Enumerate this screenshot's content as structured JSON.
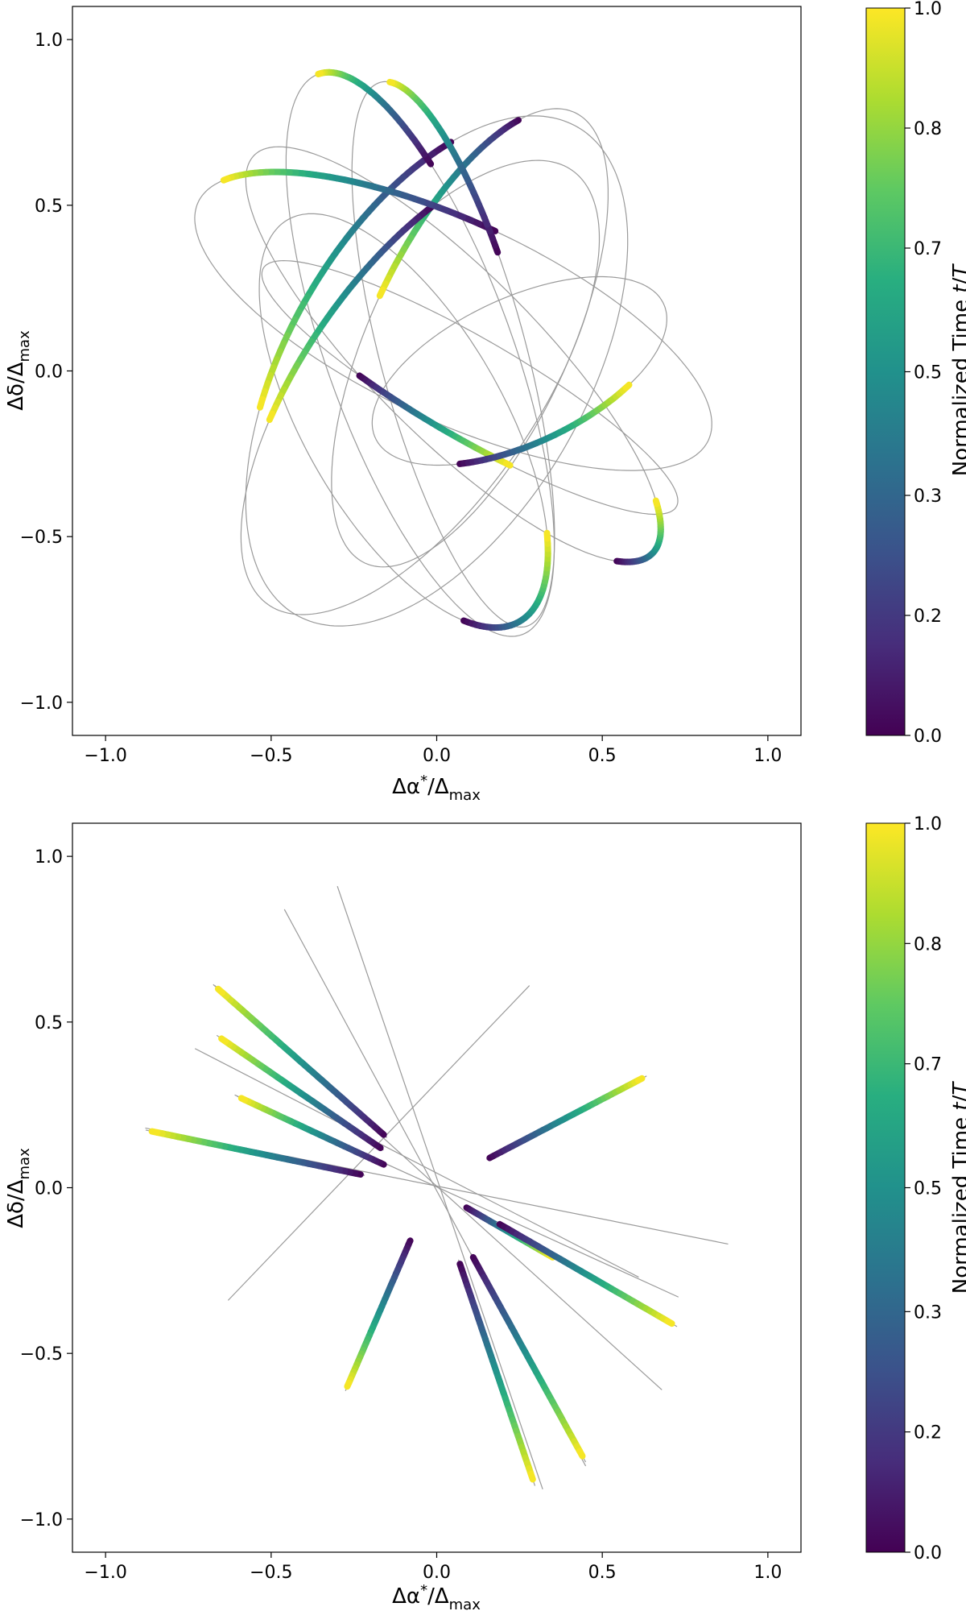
{
  "chart_data": [
    {
      "type": "line",
      "title": "",
      "xlabel": "Δα*/Δmax",
      "ylabel": "Δδ/Δmax",
      "xlim": [
        -1.1,
        1.1
      ],
      "ylim": [
        -1.1,
        1.1
      ],
      "xticks": [
        "−1.0",
        "−0.5",
        "0.0",
        "0.5",
        "1.0"
      ],
      "yticks": [
        "−1.0",
        "−0.5",
        "0.0",
        "0.5",
        "1.0"
      ],
      "grid": false,
      "colorbar": {
        "label": "Normalized Time t/T",
        "range": [
          0,
          1
        ],
        "ticks": [
          "0.0",
          "0.2",
          "0.3",
          "0.5",
          "0.7",
          "0.8",
          "1.0"
        ],
        "colormap": "viridis"
      },
      "series": [
        {
          "orbit": [
            0,
            0,
            0.85,
            0.45,
            -120
          ],
          "t": [
            -0.38,
            -0.18
          ]
        },
        {
          "orbit": [
            0.1,
            0.1,
            0.75,
            0.3,
            -115
          ],
          "t": [
            -0.42,
            -0.25
          ]
        },
        {
          "orbit": [
            -0.05,
            -0.05,
            0.8,
            0.35,
            -125
          ],
          "t": [
            -0.35,
            -0.18
          ]
        },
        {
          "orbit": [
            0.05,
            0.15,
            0.85,
            0.3,
            155
          ],
          "t": [
            -0.25,
            -0.05
          ]
        },
        {
          "orbit": [
            0.1,
            -0.05,
            0.72,
            0.15,
            150
          ],
          "t": [
            0.18,
            0.3
          ]
        },
        {
          "orbit": [
            0.25,
            0,
            0.48,
            0.22,
            25
          ],
          "t": [
            -0.35,
            -0.15
          ]
        },
        {
          "orbit": [
            -0.1,
            -0.15,
            0.7,
            0.3,
            -60
          ],
          "t": [
            -0.08,
            0.12
          ]
        },
        {
          "orbit": [
            0.05,
            0.05,
            0.85,
            0.25,
            -45
          ],
          "t": [
            -0.06,
            0.08
          ]
        },
        {
          "orbit": [
            -0.05,
            0.05,
            0.9,
            0.28,
            -70
          ],
          "t": [
            0.35,
            0.5
          ]
        },
        {
          "orbit": [
            0.05,
            0.05,
            0.85,
            0.22,
            -75
          ],
          "t": [
            0.3,
            0.48
          ]
        }
      ]
    },
    {
      "type": "line",
      "title": "",
      "xlabel": "Δα*/Δmax",
      "ylabel": "Δδ/Δmax",
      "xlim": [
        -1.1,
        1.1
      ],
      "ylim": [
        -1.1,
        1.1
      ],
      "xticks": [
        "−1.0",
        "−0.5",
        "0.0",
        "0.5",
        "1.0"
      ],
      "yticks": [
        "−1.0",
        "−0.5",
        "0.0",
        "0.5",
        "1.0"
      ],
      "grid": false,
      "colorbar": {
        "label": "Normalized Time t/T",
        "range": [
          0,
          1
        ],
        "ticks": [
          "0.0",
          "0.2",
          "0.3",
          "0.5",
          "0.7",
          "0.8",
          "1.0"
        ],
        "colormap": "viridis"
      },
      "lines": [
        [
          [
            -0.67,
            0.61
          ],
          [
            0.68,
            -0.61
          ]
        ],
        [
          [
            -0.73,
            0.42
          ],
          [
            0.61,
            -0.27
          ]
        ],
        [
          [
            -0.88,
            0.18
          ],
          [
            0.88,
            -0.17
          ]
        ],
        [
          [
            -0.61,
            0.28
          ],
          [
            0.73,
            -0.33
          ]
        ],
        [
          [
            -0.63,
            -0.34
          ],
          [
            0.28,
            0.61
          ]
        ],
        [
          [
            -0.46,
            0.84
          ],
          [
            0.45,
            -0.84
          ]
        ],
        [
          [
            -0.3,
            0.91
          ],
          [
            0.32,
            -0.91
          ]
        ]
      ],
      "series": [
        {
          "start": [
            -0.16,
            0.16
          ],
          "end": [
            -0.66,
            0.6
          ]
        },
        {
          "start": [
            -0.17,
            0.12
          ],
          "end": [
            -0.65,
            0.45
          ]
        },
        {
          "start": [
            -0.16,
            0.07
          ],
          "end": [
            -0.59,
            0.27
          ]
        },
        {
          "start": [
            -0.23,
            0.04
          ],
          "end": [
            -0.86,
            0.17
          ]
        },
        {
          "start": [
            0.16,
            0.09
          ],
          "end": [
            0.62,
            0.33
          ]
        },
        {
          "start": [
            0.09,
            -0.06
          ],
          "end": [
            0.35,
            -0.21
          ]
        },
        {
          "start": [
            0.19,
            -0.11
          ],
          "end": [
            0.71,
            -0.41
          ]
        },
        {
          "start": [
            -0.08,
            -0.16
          ],
          "end": [
            -0.27,
            -0.6
          ]
        },
        {
          "start": [
            0.07,
            -0.23
          ],
          "end": [
            0.29,
            -0.88
          ]
        },
        {
          "start": [
            0.11,
            -0.21
          ],
          "end": [
            0.44,
            -0.81
          ]
        }
      ]
    }
  ]
}
